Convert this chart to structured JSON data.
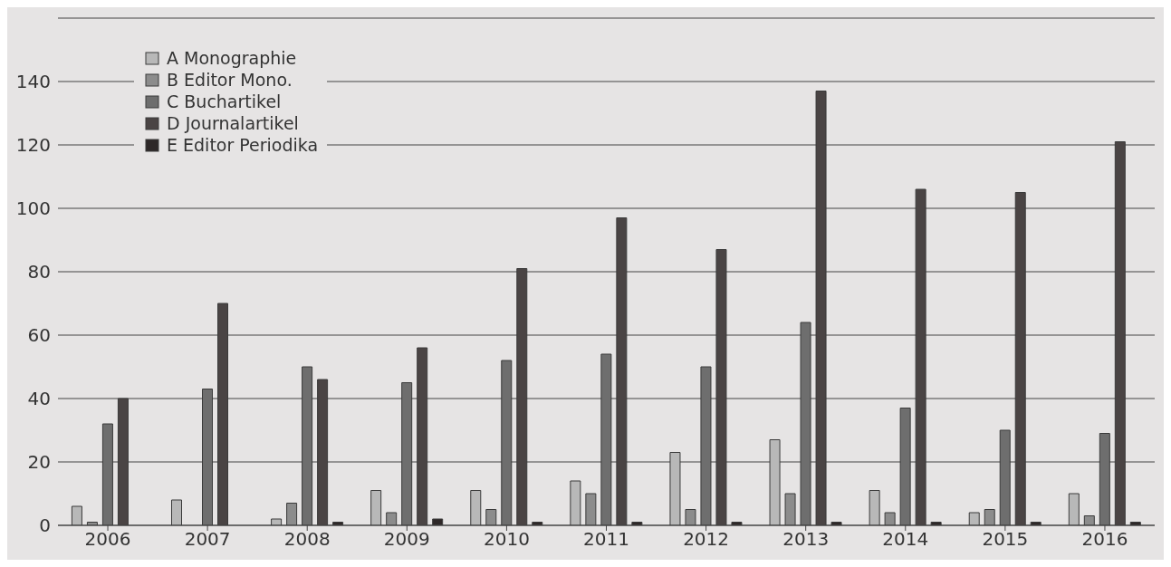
{
  "chart_data": {
    "type": "bar",
    "categories": [
      "2006",
      "2007",
      "2008",
      "2009",
      "2010",
      "2011",
      "2012",
      "2013",
      "2014",
      "2015",
      "2016"
    ],
    "series": [
      {
        "name": "A Monographie",
        "color": "#b8b8b8",
        "values": [
          6,
          8,
          2,
          11,
          11,
          14,
          23,
          27,
          11,
          4,
          10
        ]
      },
      {
        "name": "B Editor Mono.",
        "color": "#8c8c8c",
        "values": [
          1,
          0,
          7,
          4,
          5,
          10,
          5,
          10,
          4,
          5,
          3
        ]
      },
      {
        "name": "C Buchartikel",
        "color": "#6e6e6e",
        "values": [
          32,
          43,
          50,
          45,
          52,
          54,
          50,
          64,
          37,
          30,
          29
        ]
      },
      {
        "name": "D Journalartikel",
        "color": "#4a4444",
        "values": [
          40,
          70,
          46,
          56,
          81,
          97,
          87,
          137,
          106,
          105,
          121
        ]
      },
      {
        "name": "E Editor Periodika",
        "color": "#2e2828",
        "values": [
          0,
          0,
          1,
          2,
          1,
          1,
          1,
          1,
          1,
          1,
          1
        ]
      }
    ],
    "ylim": [
      0,
      160
    ],
    "yticks": [
      0,
      20,
      40,
      60,
      80,
      100,
      120,
      140,
      {
        "value": 160,
        "label": null
      }
    ],
    "grid": "y",
    "legend": "top left"
  }
}
